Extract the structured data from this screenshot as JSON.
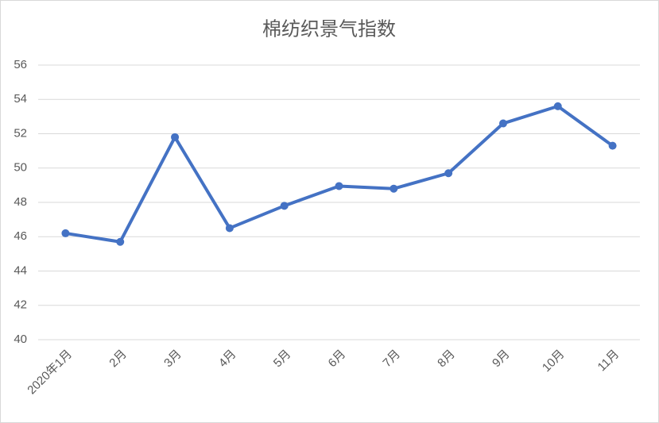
{
  "chart_data": {
    "type": "line",
    "title": "棉纺织景气指数",
    "categories": [
      "2020年1月",
      "2月",
      "3月",
      "4月",
      "5月",
      "6月",
      "7月",
      "8月",
      "9月",
      "10月",
      "11月"
    ],
    "values": [
      46.2,
      45.7,
      51.8,
      46.5,
      47.8,
      48.95,
      48.8,
      49.7,
      52.6,
      53.6,
      51.3
    ],
    "color": "#4472c4",
    "ylim": [
      40,
      56
    ],
    "yticks": [
      40,
      42,
      44,
      46,
      48,
      50,
      52,
      54,
      56
    ],
    "grid": true
  }
}
